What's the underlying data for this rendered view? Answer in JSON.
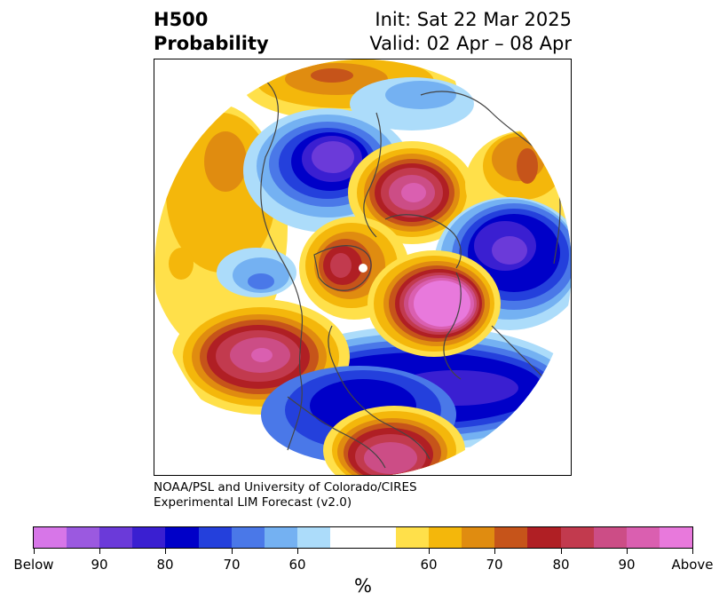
{
  "header": {
    "title_line1": "H500",
    "title_line2": "Probability",
    "init": "Init: Sat 22 Mar 2025",
    "valid": "Valid: 02 Apr – 08 Apr"
  },
  "credit": {
    "line1": "NOAA/PSL and University of Colorado/CIRES",
    "line2": "Experimental LIM Forecast (v2.0)"
  },
  "colorbar": {
    "unit": "%",
    "colors": [
      "#d776e8",
      "#9b59e0",
      "#6b3ad9",
      "#3a1fd1",
      "#0000c8",
      "#2440dc",
      "#4a78e8",
      "#74b1f2",
      "#acdcfa",
      "#ffffff",
      "#ffe04a",
      "#f4b70b",
      "#e08c10",
      "#c6541a",
      "#b01f24",
      "#c23a4e",
      "#cc4d86",
      "#da5fb0",
      "#e879dc"
    ],
    "tick_labels": [
      "Below",
      "90",
      "80",
      "70",
      "60",
      "60",
      "70",
      "80",
      "90",
      "Above"
    ]
  },
  "map": {
    "projection": "north-polar-stereographic",
    "palette": {
      "above": [
        "#ffe04a",
        "#f4b70b",
        "#e08c10",
        "#c6541a",
        "#b01f24",
        "#c23a4e",
        "#cc4d86",
        "#da5fb0",
        "#e879dc"
      ],
      "below": [
        "#acdcfa",
        "#74b1f2",
        "#4a78e8",
        "#2440dc",
        "#0000c8",
        "#3a1fd1",
        "#6b3ad9",
        "#9b59e0"
      ],
      "coastline": "#444444"
    }
  }
}
